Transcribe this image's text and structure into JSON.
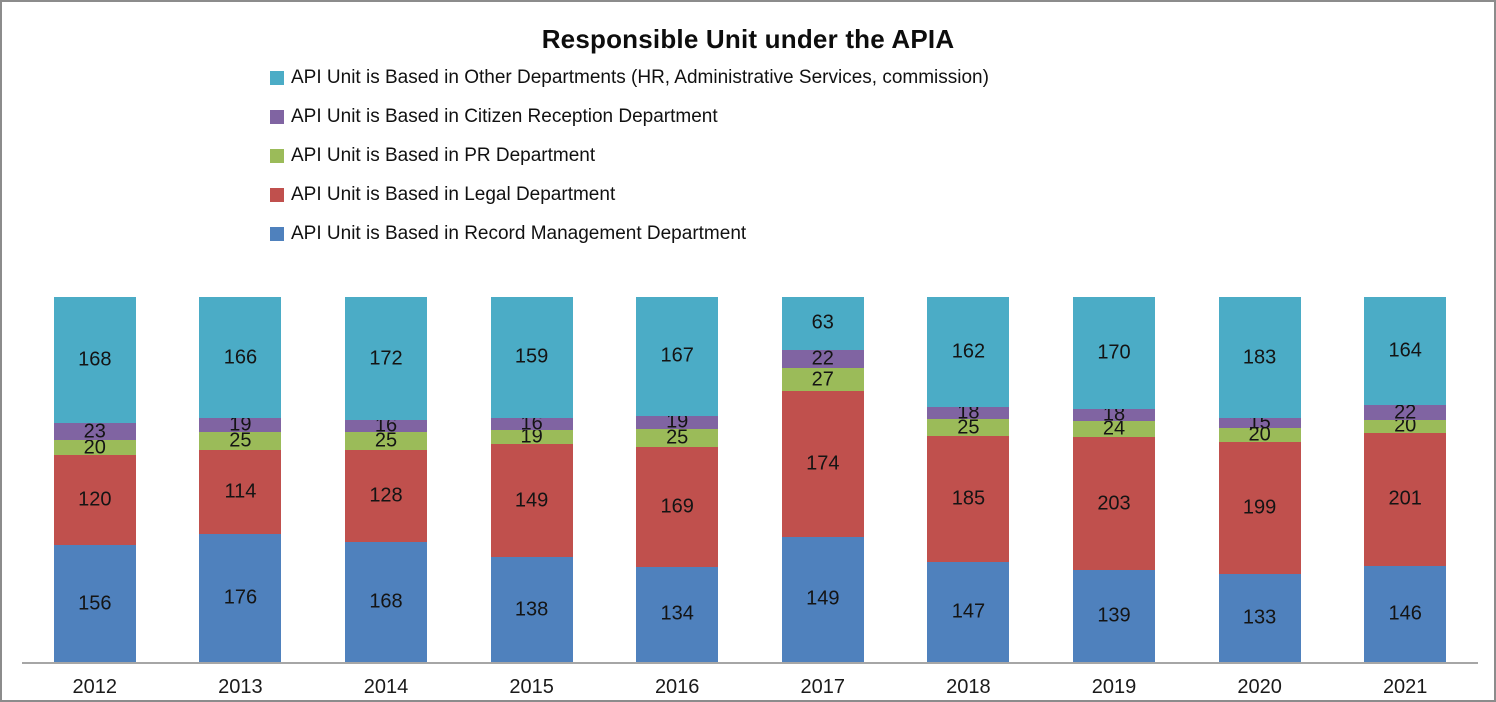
{
  "title": "Responsible Unit under the APIA",
  "chart_data": {
    "type": "bar",
    "variant": "100-percent-stacked-column",
    "title": "Responsible Unit under the APIA",
    "xlabel": "",
    "ylabel": "",
    "grid": false,
    "legend_position": "top-left-vertical",
    "categories": [
      "2012",
      "2013",
      "2014",
      "2015",
      "2016",
      "2017",
      "2018",
      "2019",
      "2020",
      "2021"
    ],
    "series": [
      {
        "name": "API Unit is Based in Record Management Department",
        "color": "#4F81BD",
        "values": [
          156,
          176,
          168,
          138,
          134,
          149,
          147,
          139,
          133,
          146
        ]
      },
      {
        "name": "API Unit is Based in Legal Department",
        "color": "#C0504D",
        "values": [
          120,
          114,
          128,
          149,
          169,
          174,
          185,
          203,
          199,
          201
        ]
      },
      {
        "name": "API Unit is Based in PR Department",
        "color": "#9BBB59",
        "values": [
          20,
          25,
          25,
          19,
          25,
          27,
          25,
          24,
          20,
          20
        ]
      },
      {
        "name": "API Unit is Based in Citizen Reception Department",
        "color": "#8064A2",
        "values": [
          23,
          19,
          16,
          16,
          19,
          22,
          18,
          18,
          15,
          22
        ]
      },
      {
        "name": "API Unit is Based in Other Departments (HR, Administrative Services, commission)",
        "color": "#4BACC6",
        "values": [
          168,
          166,
          172,
          159,
          167,
          63,
          162,
          170,
          183,
          164
        ]
      }
    ],
    "legend_order": [
      4,
      3,
      2,
      1,
      0
    ],
    "axis_line_color": "#A6A6A6",
    "data_label_color": "#141414",
    "frame_border_color": "#8C8C8C"
  }
}
